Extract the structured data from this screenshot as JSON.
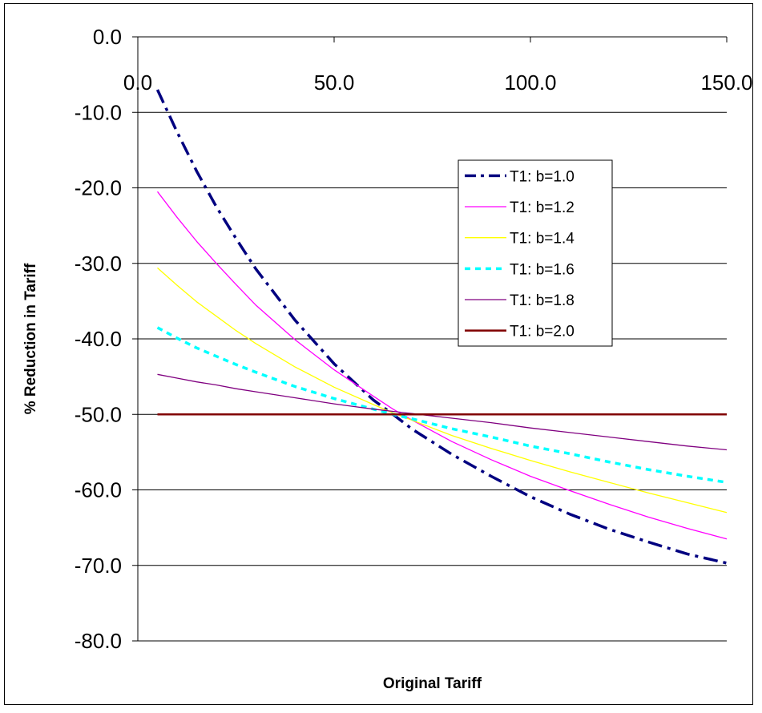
{
  "chart_data": {
    "type": "line",
    "title": "",
    "xlabel": "Original Tariff",
    "ylabel": "% Reduction in Tariff",
    "xlim": [
      0,
      150
    ],
    "ylim": [
      -80,
      0
    ],
    "x_ticks": [
      "0.0",
      "50.0",
      "100.0",
      "150.0"
    ],
    "y_ticks": [
      "0.0",
      "-10.0",
      "-20.0",
      "-30.0",
      "-40.0",
      "-50.0",
      "-60.0",
      "-70.0",
      "-80.0"
    ],
    "grid": "horizontal",
    "legend_position": "right",
    "x": [
      5,
      10,
      15,
      20,
      25,
      30,
      40,
      50,
      60,
      65,
      70,
      80,
      90,
      100,
      110,
      120,
      130,
      140,
      150
    ],
    "series": [
      {
        "name": "T1: b=1.0",
        "color": "#000080",
        "style": "dashdot",
        "width": 3.5,
        "values": [
          -7.0,
          -12.6,
          -17.8,
          -22.5,
          -26.7,
          -30.7,
          -37.5,
          -43.3,
          -48.1,
          -50.0,
          -52.0,
          -55.3,
          -58.2,
          -60.9,
          -63.2,
          -65.2,
          -66.9,
          -68.5,
          -69.7
        ]
      },
      {
        "name": "T1: b=1.2",
        "color": "#ff00ff",
        "style": "solid",
        "width": 1.3,
        "values": [
          -20.5,
          -23.9,
          -27.1,
          -30.0,
          -32.8,
          -35.5,
          -40.1,
          -44.1,
          -47.6,
          -49.3,
          -50.8,
          -53.6,
          -56.0,
          -58.2,
          -60.1,
          -61.9,
          -63.6,
          -65.1,
          -66.5
        ]
      },
      {
        "name": "T1: b=1.4",
        "color": "#ffff00",
        "style": "solid",
        "width": 1.3,
        "values": [
          -30.6,
          -32.9,
          -35.1,
          -37.0,
          -38.9,
          -40.6,
          -43.7,
          -46.4,
          -48.7,
          -49.8,
          -50.8,
          -52.8,
          -54.5,
          -56.1,
          -57.6,
          -59.0,
          -60.4,
          -61.7,
          -63.0
        ]
      },
      {
        "name": "T1: b=1.6",
        "color": "#00ffff",
        "style": "dotted",
        "width": 3.5,
        "values": [
          -38.5,
          -39.9,
          -41.2,
          -42.3,
          -43.4,
          -44.4,
          -46.3,
          -47.9,
          -49.3,
          -50.0,
          -50.6,
          -51.9,
          -53.0,
          -54.2,
          -55.2,
          -56.3,
          -57.3,
          -58.2,
          -59.0
        ]
      },
      {
        "name": "T1: b=1.8",
        "color": "#800080",
        "style": "solid",
        "width": 1.3,
        "values": [
          -44.7,
          -45.2,
          -45.7,
          -46.1,
          -46.6,
          -47.0,
          -47.8,
          -48.6,
          -49.3,
          -49.6,
          -49.9,
          -50.5,
          -51.1,
          -51.8,
          -52.4,
          -53.0,
          -53.6,
          -54.2,
          -54.7
        ]
      },
      {
        "name": "T1: b=2.0",
        "color": "#800000",
        "style": "solid",
        "width": 2.5,
        "values": [
          -50.0,
          -50.0,
          -50.0,
          -50.0,
          -50.0,
          -50.0,
          -50.0,
          -50.0,
          -50.0,
          -50.0,
          -50.0,
          -50.0,
          -50.0,
          -50.0,
          -50.0,
          -50.0,
          -50.0,
          -50.0,
          -50.0
        ]
      }
    ]
  }
}
